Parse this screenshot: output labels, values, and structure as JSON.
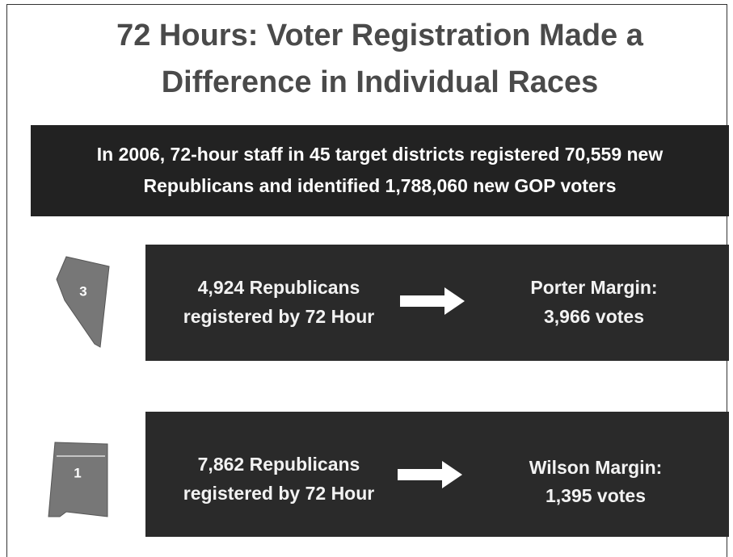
{
  "header": {
    "title_lines": [
      "72 Hours: Voter Registration Made a",
      "Difference in Individual Races"
    ]
  },
  "banner": {
    "lines": [
      "In 2006, 72-hour staff in 45 target districts registered 70,559 new",
      "Republicans and identified 1,788,060 new GOP voters"
    ]
  },
  "races": [
    {
      "district": "3",
      "left_lines": [
        "4,924 Republicans",
        "registered by 72 Hour"
      ],
      "right_lines": [
        "Porter Margin:",
        "3,966 votes"
      ]
    },
    {
      "district": "1",
      "left_lines": [
        "7,862 Republicans",
        "registered by 72 Hour"
      ],
      "right_lines": [
        "Wilson Margin:",
        "1,395 votes"
      ]
    }
  ]
}
